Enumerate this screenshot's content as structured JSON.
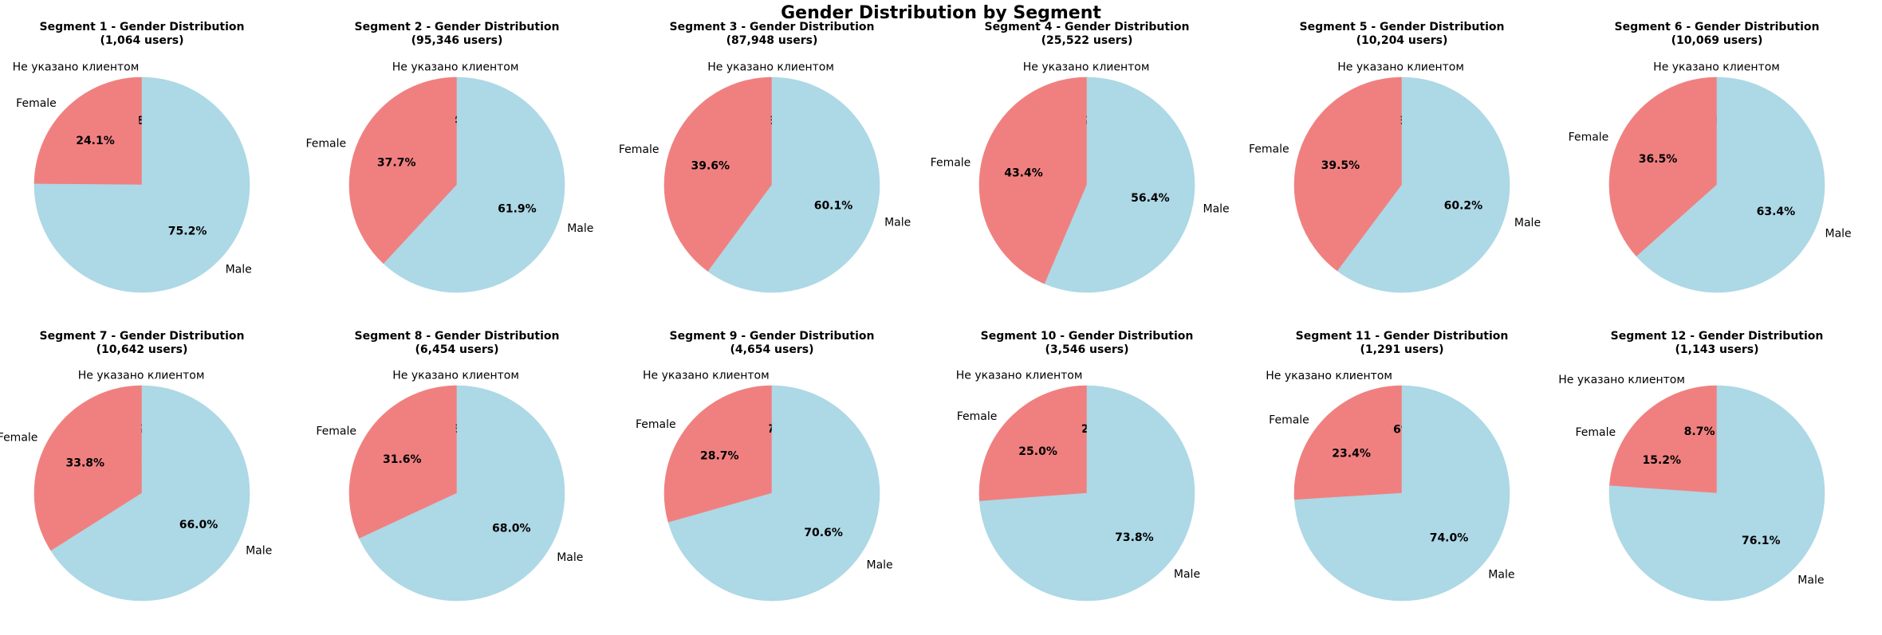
{
  "title": "Gender Distribution by Segment",
  "colors": {
    "Не указано клиентом": "#f08080",
    "Female": "#f08080",
    "Male": "#add8e6"
  },
  "chart_data": [
    {
      "type": "pie",
      "title": "Segment 1 - Gender Distribution",
      "subtitle": "(1,064 users)",
      "categories": [
        "Не указано клиентом",
        "Female",
        "Male"
      ],
      "values": [
        0.8,
        24.1,
        75.2
      ],
      "pct_labels": [
        "0.8%",
        "24.1%",
        "75.2%"
      ]
    },
    {
      "type": "pie",
      "title": "Segment 2 - Gender Distribution",
      "subtitle": "(95,346 users)",
      "categories": [
        "Не указано клиентом",
        "Female",
        "Male"
      ],
      "values": [
        0.4,
        37.7,
        61.9
      ],
      "pct_labels": [
        "0.4%",
        "37.7%",
        "61.9%"
      ]
    },
    {
      "type": "pie",
      "title": "Segment 3 - Gender Distribution",
      "subtitle": "(87,948 users)",
      "categories": [
        "Не указано клиентом",
        "Female",
        "Male"
      ],
      "values": [
        0.3,
        39.6,
        60.1
      ],
      "pct_labels": [
        "0.3%",
        "39.6%",
        "60.1%"
      ]
    },
    {
      "type": "pie",
      "title": "Segment 4 - Gender Distribution",
      "subtitle": "(25,522 users)",
      "categories": [
        "Не указано клиентом",
        "Female",
        "Male"
      ],
      "values": [
        0.2,
        43.4,
        56.4
      ],
      "pct_labels": [
        "0.2%",
        "43.4%",
        "56.4%"
      ]
    },
    {
      "type": "pie",
      "title": "Segment 5 - Gender Distribution",
      "subtitle": "(10,204 users)",
      "categories": [
        "Не указано клиентом",
        "Female",
        "Male"
      ],
      "values": [
        0.3,
        39.5,
        60.2
      ],
      "pct_labels": [
        "0.3%",
        "39.5%",
        "60.2%"
      ]
    },
    {
      "type": "pie",
      "title": "Segment 6 - Gender Distribution",
      "subtitle": "(10,069 users)",
      "categories": [
        "Не указано клиентом",
        "Female",
        "Male"
      ],
      "values": [
        0.1,
        36.5,
        63.4
      ],
      "pct_labels": [
        "0.1%",
        "36.5%",
        "63.4%"
      ]
    },
    {
      "type": "pie",
      "title": "Segment 7 - Gender Distribution",
      "subtitle": "(10,642 users)",
      "categories": [
        "Не указано клиентом",
        "Female",
        "Male"
      ],
      "values": [
        0.2,
        33.8,
        66.0
      ],
      "pct_labels": [
        "0.2%",
        "33.8%",
        "66.0%"
      ]
    },
    {
      "type": "pie",
      "title": "Segment 8 - Gender Distribution",
      "subtitle": "(6,454 users)",
      "categories": [
        "Не указано клиентом",
        "Female",
        "Male"
      ],
      "values": [
        0.3,
        31.6,
        68.0
      ],
      "pct_labels": [
        "0.3%",
        "31.6%",
        "68.0%"
      ]
    },
    {
      "type": "pie",
      "title": "Segment 9 - Gender Distribution",
      "subtitle": "(4,654 users)",
      "categories": [
        "Не указано клиентом",
        "Female",
        "Male"
      ],
      "values": [
        0.7,
        28.7,
        70.6
      ],
      "pct_labels": [
        "0.7%",
        "28.7%",
        "70.6%"
      ]
    },
    {
      "type": "pie",
      "title": "Segment 10 - Gender Distribution",
      "subtitle": "(3,546 users)",
      "categories": [
        "Не указано клиентом",
        "Female",
        "Male"
      ],
      "values": [
        1.2,
        25.0,
        73.8
      ],
      "pct_labels": [
        "1.2%",
        "25.0%",
        "73.8%"
      ]
    },
    {
      "type": "pie",
      "title": "Segment 11 - Gender Distribution",
      "subtitle": "(1,291 users)",
      "categories": [
        "Не указано клиентом",
        "Female",
        "Male"
      ],
      "values": [
        2.6,
        23.4,
        74.0
      ],
      "pct_labels": [
        "2.6%",
        "23.4%",
        "74.0%"
      ]
    },
    {
      "type": "pie",
      "title": "Segment 12 - Gender Distribution",
      "subtitle": "(1,143 users)",
      "categories": [
        "Не указано клиентом",
        "Female",
        "Male"
      ],
      "values": [
        8.7,
        15.2,
        76.1
      ],
      "pct_labels": [
        "8.7%",
        "15.2%",
        "76.1%"
      ]
    }
  ]
}
